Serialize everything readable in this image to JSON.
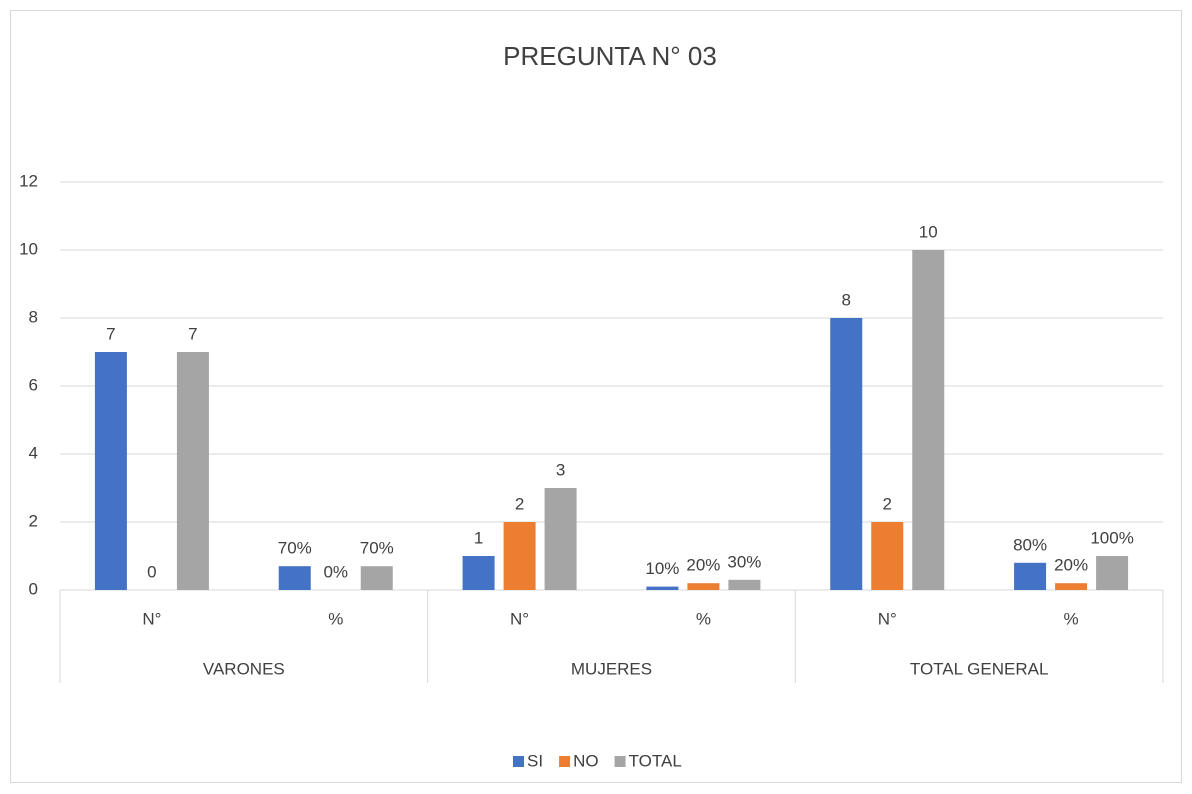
{
  "chart_data": {
    "type": "bar",
    "title": "PREGUNTA N° 03",
    "categories": [
      "N°",
      "%",
      "N°",
      "%",
      "N°",
      "%"
    ],
    "groups": [
      "VARONES",
      "MUJERES",
      "TOTAL GENERAL"
    ],
    "series": [
      {
        "name": "SI",
        "color": "#4472c4",
        "values": [
          7,
          0.7,
          1,
          0.1,
          8,
          0.8
        ],
        "value_labels": [
          "7",
          "70%",
          "1",
          "10%",
          "8",
          "80%"
        ]
      },
      {
        "name": "NO",
        "color": "#ed7d31",
        "values": [
          0,
          0,
          2,
          0.2,
          2,
          0.2
        ],
        "value_labels": [
          "0",
          "0%",
          "2",
          "20%",
          "2",
          "20%"
        ]
      },
      {
        "name": "TOTAL",
        "color": "#a5a5a5",
        "values": [
          7,
          0.7,
          3,
          0.3,
          10,
          1
        ],
        "value_labels": [
          "7",
          "70%",
          "3",
          "30%",
          "10",
          "100%"
        ]
      }
    ],
    "ylim": [
      0,
      12
    ],
    "yticks": [
      0,
      2,
      4,
      6,
      8,
      10,
      12
    ],
    "grid": true,
    "legend": "bottom"
  }
}
